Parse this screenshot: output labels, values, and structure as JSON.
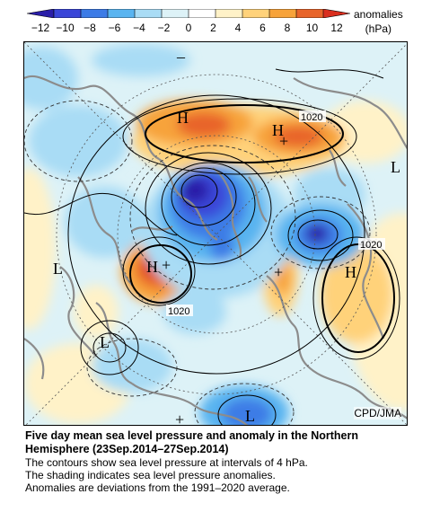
{
  "colorbar": {
    "ticks": [
      "-12",
      "-10",
      "-8",
      "-6",
      "-4",
      "-2",
      "0",
      "2",
      "4",
      "6",
      "8",
      "10",
      "12"
    ],
    "unit_line1": "anomalies",
    "unit_line2": "(hPa)",
    "colors": [
      "#2a1ea8",
      "#3a46d8",
      "#3c7be6",
      "#59b4f0",
      "#a9dcf5",
      "#ddf2f7",
      "#ffffff",
      "#fff2c8",
      "#ffd27a",
      "#f7a33a",
      "#e8642a",
      "#d92e1e"
    ]
  },
  "map": {
    "credit": "CPD/JMA",
    "centers": [
      {
        "label": "H"
      },
      {
        "label": "H"
      },
      {
        "label": "H"
      },
      {
        "label": "H"
      },
      {
        "label": "L"
      },
      {
        "label": "L"
      },
      {
        "label": "L"
      },
      {
        "label": "L"
      },
      {
        "label": "–"
      },
      {
        "label": "+"
      },
      {
        "label": "+"
      },
      {
        "label": "+"
      },
      {
        "label": "+"
      }
    ],
    "contour_labels": [
      "1020",
      "1020",
      "1020"
    ]
  },
  "caption": {
    "title": "Five day mean sea level pressure and anomaly in the Northern Hemisphere (23Sep.2014–27Sep.2014)",
    "lines": [
      "The contours show sea level pressure at intervals of 4 hPa.",
      "The shading indicates sea level pressure anomalies.",
      "Anomalies are deviations from the 1991–2020 average."
    ]
  }
}
